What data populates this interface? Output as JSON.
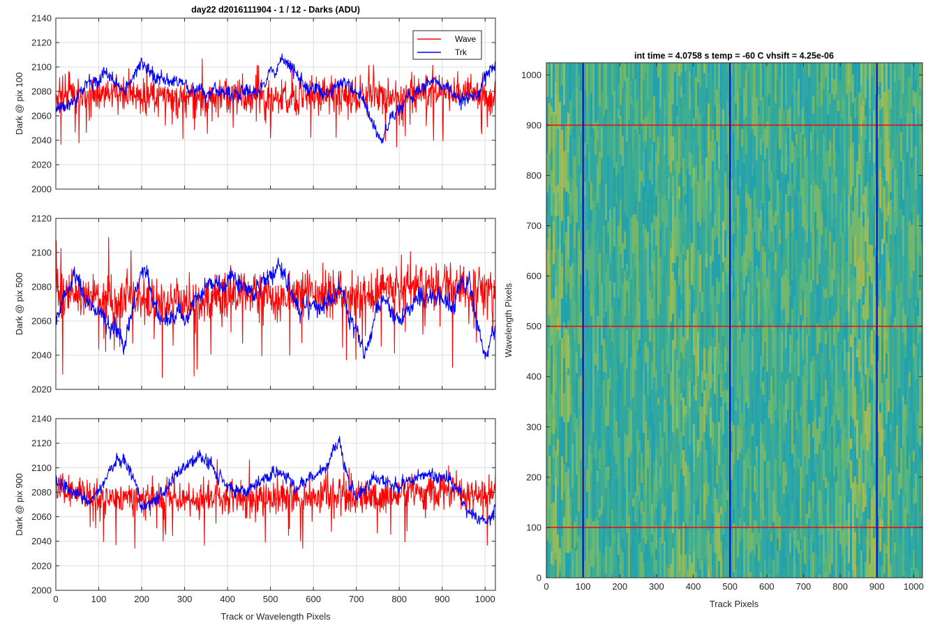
{
  "chart_data": [
    {
      "type": "line",
      "title": "day22 d2016111904 - 1 / 12 - Darks (ADU)",
      "ylabel": "Dark @ pix 100",
      "xlabel": "",
      "xlim": [
        0,
        1024
      ],
      "ylim": [
        2000,
        2140
      ],
      "xticks": [
        0,
        100,
        200,
        300,
        400,
        500,
        600,
        700,
        800,
        900,
        1000
      ],
      "yticks": [
        2000,
        2020,
        2040,
        2060,
        2080,
        2100,
        2120,
        2140
      ],
      "grid": true,
      "legend": {
        "placement": "top-right",
        "entries": [
          "Wave",
          "Trk"
        ]
      },
      "series": [
        {
          "name": "Wave",
          "color": "#ff0000",
          "mean": 2076,
          "noise": 13,
          "x": [
            0,
            100,
            200,
            300,
            400,
            500,
            600,
            700,
            800,
            900,
            1000,
            1024
          ],
          "y": [
            2078,
            2076,
            2077,
            2075,
            2076,
            2074,
            2077,
            2076,
            2078,
            2080,
            2077,
            2070
          ]
        },
        {
          "name": "Trk",
          "color": "#0000ff",
          "mean": 2080,
          "noise": 4,
          "x": [
            0,
            40,
            70,
            120,
            160,
            200,
            240,
            300,
            360,
            420,
            470,
            530,
            570,
            620,
            680,
            720,
            760,
            780,
            820,
            880,
            940,
            980,
            1024
          ],
          "y": [
            2065,
            2070,
            2085,
            2095,
            2080,
            2105,
            2092,
            2085,
            2078,
            2080,
            2078,
            2108,
            2090,
            2075,
            2088,
            2070,
            2035,
            2060,
            2075,
            2090,
            2072,
            2078,
            2104
          ]
        }
      ]
    },
    {
      "type": "line",
      "title": "",
      "ylabel": "Dark @ pix 500",
      "xlabel": "",
      "xlim": [
        0,
        1024
      ],
      "ylim": [
        2020,
        2120
      ],
      "xticks": [
        0,
        100,
        200,
        300,
        400,
        500,
        600,
        700,
        800,
        900,
        1000
      ],
      "yticks": [
        2020,
        2040,
        2060,
        2080,
        2100,
        2120
      ],
      "grid": true,
      "series": [
        {
          "name": "Wave",
          "color": "#ff0000",
          "mean": 2076,
          "noise": 12,
          "x": [
            0,
            100,
            200,
            300,
            400,
            500,
            600,
            700,
            800,
            900,
            1000,
            1024
          ],
          "y": [
            2080,
            2074,
            2072,
            2070,
            2075,
            2074,
            2076,
            2075,
            2080,
            2082,
            2078,
            2075
          ]
        },
        {
          "name": "Trk",
          "color": "#0000ff",
          "mean": 2070,
          "noise": 4,
          "x": [
            0,
            40,
            80,
            120,
            160,
            200,
            240,
            300,
            360,
            420,
            460,
            520,
            560,
            620,
            660,
            720,
            760,
            800,
            860,
            920,
            960,
            1000,
            1024
          ],
          "y": [
            2060,
            2088,
            2070,
            2060,
            2050,
            2095,
            2062,
            2062,
            2080,
            2085,
            2075,
            2095,
            2068,
            2070,
            2078,
            2040,
            2075,
            2060,
            2078,
            2070,
            2085,
            2040,
            2052
          ]
        }
      ]
    },
    {
      "type": "line",
      "title": "",
      "ylabel": "Dark @ pix 900",
      "xlabel": "Track or Wavelength Pixels",
      "xlim": [
        0,
        1024
      ],
      "ylim": [
        2000,
        2140
      ],
      "xticks": [
        0,
        100,
        200,
        300,
        400,
        500,
        600,
        700,
        800,
        900,
        1000
      ],
      "yticks": [
        2000,
        2020,
        2040,
        2060,
        2080,
        2100,
        2120,
        2140
      ],
      "grid": true,
      "series": [
        {
          "name": "Wave",
          "color": "#ff0000",
          "mean": 2077,
          "noise": 12,
          "x": [
            0,
            100,
            200,
            300,
            400,
            500,
            600,
            700,
            800,
            900,
            1000,
            1024
          ],
          "y": [
            2082,
            2076,
            2074,
            2074,
            2076,
            2075,
            2077,
            2075,
            2078,
            2080,
            2077,
            2075
          ]
        },
        {
          "name": "Trk",
          "color": "#0000ff",
          "mean": 2085,
          "noise": 4,
          "x": [
            0,
            40,
            80,
            120,
            160,
            200,
            240,
            280,
            340,
            400,
            440,
            500,
            560,
            620,
            660,
            700,
            740,
            800,
            860,
            920,
            960,
            1000,
            1024
          ],
          "y": [
            2090,
            2080,
            2070,
            2095,
            2110,
            2070,
            2075,
            2095,
            2110,
            2085,
            2080,
            2095,
            2085,
            2100,
            2120,
            2075,
            2092,
            2085,
            2095,
            2092,
            2065,
            2055,
            2070
          ]
        }
      ]
    },
    {
      "type": "heatmap",
      "title": "int time = 4.0758 s    temp = -60 C    vhsift = 4.25e-06",
      "xlabel": "Track Pixels",
      "ylabel": "Wavelength Pixels",
      "xlim": [
        0,
        1024
      ],
      "ylim": [
        0,
        1024
      ],
      "xticks": [
        0,
        100,
        200,
        300,
        400,
        500,
        600,
        700,
        800,
        900,
        1000
      ],
      "yticks": [
        0,
        100,
        200,
        300,
        400,
        500,
        600,
        700,
        800,
        900,
        1000
      ],
      "colormap": "parula",
      "vertical_lines": {
        "color": "#0000cc",
        "x": [
          100,
          500,
          900
        ]
      },
      "horizontal_lines": {
        "color": "#ff0000",
        "y": [
          100,
          500,
          900
        ]
      }
    }
  ]
}
